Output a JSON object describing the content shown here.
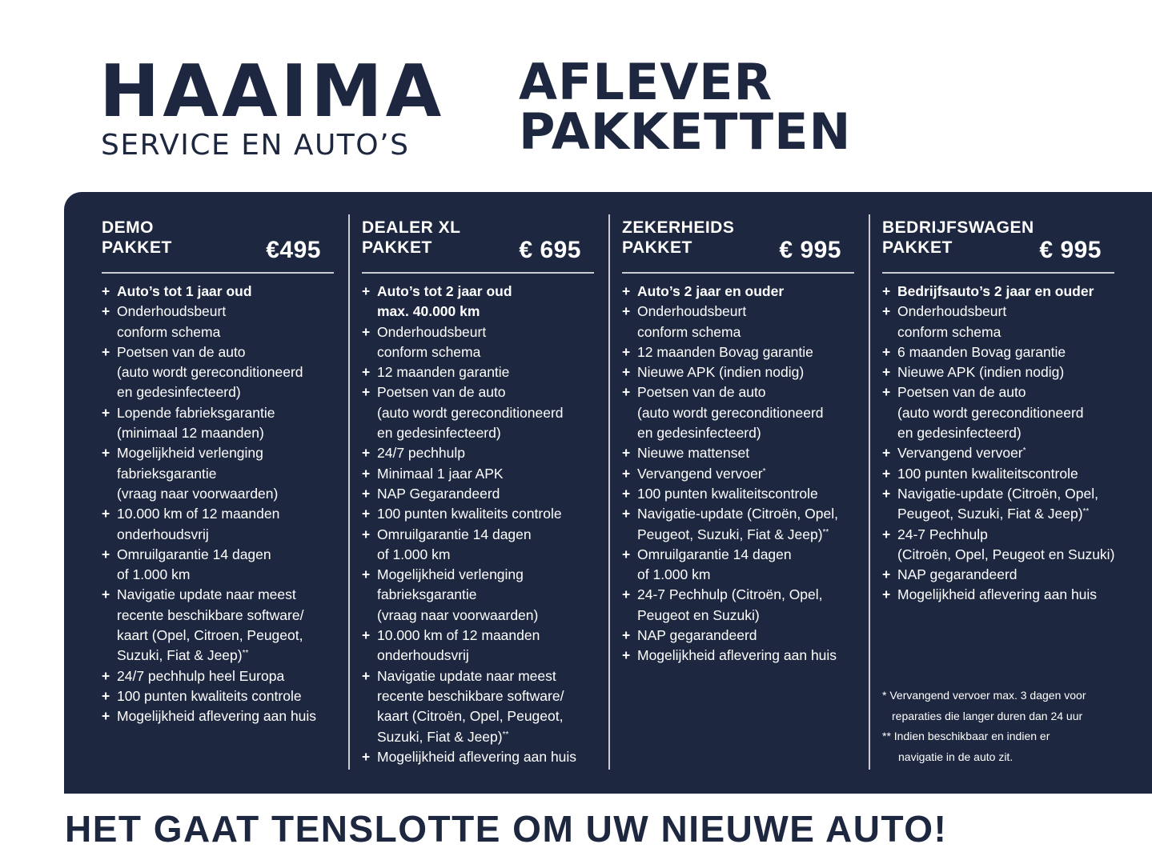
{
  "brand": {
    "name": "HAAIMA",
    "tagline": "SERVICE EN AUTO’S"
  },
  "title": {
    "line1": "AFLEVER",
    "line2": "PAKKETTEN"
  },
  "colors": {
    "navy": "#1e2740",
    "text_on_dark": "#ffffff",
    "divider": "#c9ccd3"
  },
  "packages": [
    {
      "name": "DEMO\nPAKKET",
      "price": "€495",
      "items": [
        [
          "Auto’s tot 1 jaar oud"
        ],
        [
          "Onderhoudsbeurt",
          "conform schema"
        ],
        [
          "Poetsen van de auto",
          "(auto wordt gereconditioneerd",
          "en gedesinfecteerd)"
        ],
        [
          "Lopende fabrieksgarantie",
          "(minimaal 12 maanden)"
        ],
        [
          "Mogelijkheid verlenging",
          "fabrieksgarantie",
          "(vraag naar voorwaarden)"
        ],
        [
          "10.000 km of 12 maanden",
          "onderhoudsvrij"
        ],
        [
          "Omruilgarantie 14 dagen",
          "of 1.000 km"
        ],
        [
          "Navigatie update naar meest",
          "recente beschikbare software/",
          "kaart (Opel, Citroen,  Peugeot,",
          "Suzuki, Fiat & Jeep)**"
        ],
        [
          "24/7 pechhulp heel Europa"
        ],
        [
          "100 punten kwaliteits controle"
        ],
        [
          "Mogelijkheid aflevering aan huis"
        ]
      ]
    },
    {
      "name": "DEALER XL\nPAKKET",
      "price": "€ 695",
      "items": [
        [
          "Auto’s tot 2 jaar oud",
          "max. 40.000 km"
        ],
        [
          "Onderhoudsbeurt",
          "conform schema"
        ],
        [
          "12 maanden garantie"
        ],
        [
          "Poetsen van de auto",
          "(auto wordt gereconditioneerd",
          "en gedesinfecteerd)"
        ],
        [
          "24/7 pechhulp"
        ],
        [
          "Minimaal 1 jaar APK"
        ],
        [
          "NAP Gegarandeerd"
        ],
        [
          "100 punten kwaliteits controle"
        ],
        [
          "Omruilgarantie 14 dagen",
          "of 1.000 km"
        ],
        [
          "Mogelijkheid verlenging",
          "fabrieksgarantie",
          "(vraag naar voorwaarden)"
        ],
        [
          "10.000 km of 12 maanden",
          "onderhoudsvrij"
        ],
        [
          "Navigatie update naar meest",
          "recente beschikbare software/",
          "kaart (Citroën, Opel, Peugeot,",
          "Suzuki, Fiat & Jeep)**"
        ],
        [
          "Mogelijkheid aflevering aan huis"
        ]
      ]
    },
    {
      "name": "ZEKERHEIDS\nPAKKET",
      "price": "€ 995",
      "items": [
        [
          "Auto’s 2 jaar en ouder"
        ],
        [
          "Onderhoudsbeurt",
          "conform schema"
        ],
        [
          "12 maanden Bovag garantie"
        ],
        [
          "Nieuwe APK (indien nodig)"
        ],
        [
          "Poetsen van de auto",
          "(auto wordt gereconditioneerd",
          "en gedesinfecteerd)"
        ],
        [
          "Nieuwe mattenset"
        ],
        [
          "Vervangend vervoer*"
        ],
        [
          "100 punten kwaliteitscontrole"
        ],
        [
          "Navigatie-update (Citroën, Opel,",
          "Peugeot, Suzuki, Fiat & Jeep)**"
        ],
        [
          "Omruilgarantie 14 dagen",
          "of 1.000 km"
        ],
        [
          "24-7 Pechhulp (Citroën, Opel,",
          "Peugeot en Suzuki)"
        ],
        [
          "NAP gegarandeerd"
        ],
        [
          "Mogelijkheid aflevering aan huis"
        ]
      ]
    },
    {
      "name": "BEDRIJFSWAGEN\nPAKKET",
      "price": "€ 995",
      "items": [
        [
          "Bedrijfsauto’s 2 jaar en ouder"
        ],
        [
          "Onderhoudsbeurt",
          "conform schema"
        ],
        [
          "6 maanden Bovag garantie"
        ],
        [
          "Nieuwe APK (indien nodig)"
        ],
        [
          "Poetsen van de auto",
          "(auto wordt gereconditioneerd",
          "en gedesinfecteerd)"
        ],
        [
          "Vervangend vervoer*"
        ],
        [
          "100 punten kwaliteitscontrole"
        ],
        [
          "Navigatie-update (Citroën, Opel,",
          "Peugeot, Suzuki, Fiat & Jeep)**"
        ],
        [
          "24-7 Pechhulp",
          "(Citroën, Opel, Peugeot en Suzuki)"
        ],
        [
          "NAP gegarandeerd"
        ],
        [
          "Mogelijkheid aflevering aan huis"
        ]
      ]
    }
  ],
  "footnotes": {
    "note1_line1": "* Vervangend vervoer max. 3 dagen voor",
    "note1_line2": "reparaties die langer duren dan 24 uur",
    "note2_line1": "** Indien beschikbaar en indien er",
    "note2_line2": "navigatie in de auto zit."
  },
  "footer": "HET GAAT TENSLOTTE OM UW NIEUWE AUTO!"
}
